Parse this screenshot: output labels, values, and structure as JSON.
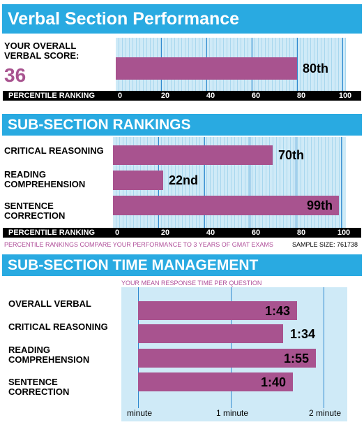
{
  "section1": {
    "title": "Verbal Section Performance",
    "score_label": "YOUR OVERALL VERBAL SCORE:",
    "score_value": "36",
    "percentile_label": "PERCENTILE RANKING",
    "ticks": [
      "0",
      "20",
      "40",
      "60",
      "80",
      "100"
    ]
  },
  "section2": {
    "title": "SUB-SECTION RANKINGS",
    "percentile_label": "PERCENTILE RANKING",
    "ticks": [
      "0",
      "20",
      "40",
      "60",
      "80",
      "100"
    ],
    "note": "PERCENTILE RANKINGS COMPARE YOUR PERFORMANCE TO 3 YEARS OF GMAT EXAMS",
    "sample_size": "SAMPLE SIZE: 761738"
  },
  "section3": {
    "title": "SUB-SECTION TIME MANAGEMENT",
    "subtitle": "YOUR MEAN RESPONSE TIME PER QUESTION",
    "ticks": [
      "minute",
      "1 minute",
      "2 minute"
    ]
  },
  "colors": {
    "banner": "#29aae1",
    "bar": "#a8538f",
    "plot_bg": "#cfeaf7",
    "score": "#a8538f"
  },
  "chart_data": [
    {
      "type": "bar",
      "orientation": "horizontal",
      "categories": [
        "YOUR OVERALL VERBAL SCORE"
      ],
      "values": [
        80
      ],
      "data_labels": [
        "80th"
      ],
      "xlabel": "PERCENTILE RANKING",
      "xlim": [
        0,
        100
      ],
      "xticks": [
        0,
        20,
        40,
        60,
        80,
        100
      ]
    },
    {
      "type": "bar",
      "orientation": "horizontal",
      "categories": [
        "CRITICAL REASONING",
        "READING COMPREHENSION",
        "SENTENCE CORRECTION"
      ],
      "values": [
        70,
        22,
        99
      ],
      "data_labels": [
        "70th",
        "22nd",
        "99th"
      ],
      "xlabel": "PERCENTILE RANKING",
      "xlim": [
        0,
        100
      ],
      "xticks": [
        0,
        20,
        40,
        60,
        80,
        100
      ]
    },
    {
      "type": "bar",
      "orientation": "horizontal",
      "categories": [
        "OVERALL VERBAL",
        "CRITICAL REASONING",
        "READING COMPREHENSION",
        "SENTENCE CORRECTION"
      ],
      "values_seconds": [
        103,
        94,
        115,
        100
      ],
      "data_labels": [
        "1:43",
        "1:34",
        "1:55",
        "1:40"
      ],
      "xlim_seconds": [
        0,
        120
      ]
    }
  ]
}
